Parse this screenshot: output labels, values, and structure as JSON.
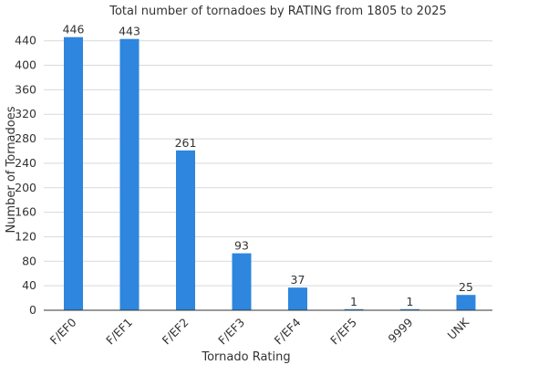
{
  "chart_data": {
    "type": "bar",
    "title": "Total number of tornadoes by RATING from 1805 to 2025",
    "xlabel": "Tornado Rating",
    "ylabel": "Number of Tornadoes",
    "categories": [
      "F/EF0",
      "F/EF1",
      "F/EF2",
      "F/EF3",
      "F/EF4",
      "F/EF5",
      "9999",
      "UNK"
    ],
    "values": [
      446,
      443,
      261,
      93,
      37,
      1,
      1,
      25
    ],
    "data_labels": [
      "446",
      "443",
      "261",
      "93",
      "37",
      "1",
      "1",
      "25"
    ],
    "ylim": [
      0,
      450
    ],
    "yticks": [
      0,
      40,
      80,
      120,
      160,
      200,
      240,
      280,
      320,
      360,
      400,
      440
    ],
    "grid": true,
    "legend": "none",
    "bar_color": "#2e86de"
  }
}
